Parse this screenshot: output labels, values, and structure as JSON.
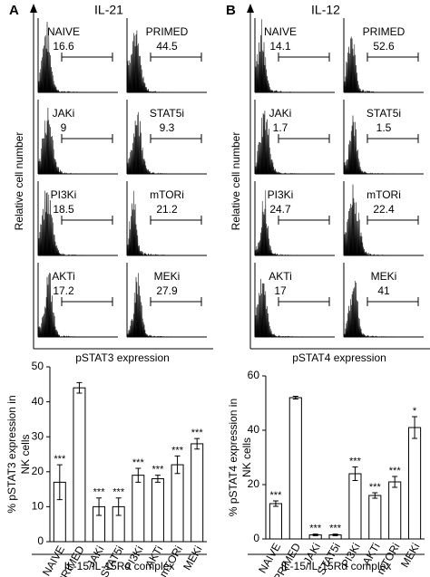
{
  "chart_data": [
    {
      "type": "histogram",
      "panel": "A",
      "title": "IL-21",
      "y_label": "Relative cell number",
      "x_label": "pSTAT3 expression",
      "gates": [
        {
          "label": "NAIVE",
          "value": 16.6
        },
        {
          "label": "PRIMED",
          "value": 44.5
        },
        {
          "label": "JAKi",
          "value": 9
        },
        {
          "label": "STAT5i",
          "value": 9.3
        },
        {
          "label": "PI3Ki",
          "value": 18.5
        },
        {
          "label": "mTORi",
          "value": 21.2
        },
        {
          "label": "AKTi",
          "value": 17.2
        },
        {
          "label": "MEKi",
          "value": 27.9
        }
      ]
    },
    {
      "type": "bar",
      "y_label": [
        "% pSTAT3 expression in",
        "NK cells"
      ],
      "x_label": "IL-15/IL-15Rα complex",
      "categories": [
        "NAIVE",
        "PRIMED",
        "JAKi",
        "STAT5i",
        "PI3Ki",
        "AKTi",
        "mTORi",
        "MEKi"
      ],
      "values": [
        17,
        44,
        10,
        10,
        19,
        18,
        22,
        28
      ],
      "errors": [
        5,
        1.5,
        2.5,
        2.5,
        2,
        1,
        2.5,
        1.5
      ],
      "significance": [
        "***",
        null,
        "***",
        "***",
        "***",
        "***",
        "***",
        "***"
      ],
      "ylim": [
        0,
        50
      ],
      "yticks": [
        0,
        10,
        20,
        30,
        40,
        50
      ],
      "color": "#ffffff"
    },
    {
      "type": "histogram",
      "panel": "B",
      "title": "IL-12",
      "y_label": "Relative cell number",
      "x_label": "pSTAT4 expression",
      "gates": [
        {
          "label": "NAIVE",
          "value": 14.1
        },
        {
          "label": "PRIMED",
          "value": 52.6
        },
        {
          "label": "JAKi",
          "value": 1.7
        },
        {
          "label": "STAT5i",
          "value": 1.5
        },
        {
          "label": "PI3Ki",
          "value": 24.7
        },
        {
          "label": "mTORi",
          "value": 22.4
        },
        {
          "label": "AKTi",
          "value": 17
        },
        {
          "label": "MEKi",
          "value": 41
        }
      ]
    },
    {
      "type": "bar",
      "y_label": [
        "% pSTAT4 expression in",
        "NK cells"
      ],
      "x_label": "IL-15/IL-15Rα complex",
      "categories": [
        "NAIVE",
        "PRIMED",
        "JAKi",
        "STAT5i",
        "PI3Ki",
        "AKTi",
        "mTORi",
        "MEKi"
      ],
      "values": [
        13,
        52,
        1.5,
        1.5,
        24,
        16,
        21,
        41
      ],
      "errors": [
        1,
        0.5,
        0.3,
        0.3,
        2.5,
        1,
        2,
        4
      ],
      "significance": [
        "***",
        null,
        "***",
        "***",
        "***",
        "***",
        "***",
        "*"
      ],
      "ylim": [
        0,
        60
      ],
      "yticks": [
        0,
        20,
        40,
        60
      ],
      "color": "#ffffff"
    }
  ]
}
